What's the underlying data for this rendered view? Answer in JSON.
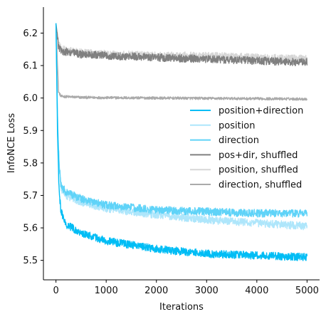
{
  "chart_data": {
    "type": "line",
    "title": "",
    "xlabel": "Iterations",
    "ylabel": "InfoNCE Loss",
    "xlim": [
      -250,
      5250
    ],
    "ylim": [
      5.44,
      6.28
    ],
    "x_ticks": [
      0,
      1000,
      2000,
      3000,
      4000,
      5000
    ],
    "x_tick_labels": [
      "0",
      "1000",
      "2000",
      "3000",
      "4000",
      "5000"
    ],
    "y_ticks": [
      5.5,
      5.6,
      5.7,
      5.8,
      5.9,
      6.0,
      6.1,
      6.2
    ],
    "y_tick_labels": [
      "5.5",
      "5.6",
      "5.7",
      "5.8",
      "5.9",
      "6.0",
      "6.1",
      "6.2"
    ],
    "grid": false,
    "legend_position": "center-right",
    "series": [
      {
        "name": "direction, shuffled",
        "color": "#aaaaaa",
        "x": [
          0,
          50,
          100,
          500,
          1000,
          2000,
          3000,
          4000,
          5000
        ],
        "y": [
          6.23,
          6.02,
          6.005,
          6.002,
          6.001,
          6.0,
          5.999,
          5.998,
          5.997
        ],
        "noise": 0.004
      },
      {
        "name": "position, shuffled",
        "color": "#d7d7d7",
        "x": [
          0,
          50,
          100,
          500,
          1000,
          2000,
          3000,
          4000,
          5000
        ],
        "y": [
          6.23,
          6.17,
          6.15,
          6.14,
          6.135,
          6.13,
          6.13,
          6.125,
          6.12
        ],
        "noise": 0.012
      },
      {
        "name": "pos+dir, shuffled",
        "color": "#808080",
        "x": [
          0,
          50,
          100,
          500,
          1000,
          2000,
          3000,
          4000,
          5000
        ],
        "y": [
          6.23,
          6.16,
          6.145,
          6.135,
          6.13,
          6.125,
          6.12,
          6.115,
          6.11
        ],
        "noise": 0.012
      },
      {
        "name": "position",
        "color": "#aee6fb",
        "x": [
          0,
          30,
          60,
          100,
          200,
          500,
          1000,
          2000,
          3000,
          4000,
          5000
        ],
        "y": [
          6.23,
          5.95,
          5.8,
          5.72,
          5.7,
          5.68,
          5.66,
          5.64,
          5.625,
          5.615,
          5.605
        ],
        "noise": 0.012
      },
      {
        "name": "direction",
        "color": "#5fd3f8",
        "x": [
          0,
          30,
          60,
          100,
          200,
          500,
          1000,
          2000,
          3000,
          4000,
          5000
        ],
        "y": [
          6.23,
          5.95,
          5.8,
          5.73,
          5.71,
          5.69,
          5.67,
          5.655,
          5.65,
          5.645,
          5.645
        ],
        "noise": 0.012
      },
      {
        "name": "position+direction",
        "color": "#00bdf5",
        "x": [
          0,
          30,
          60,
          100,
          200,
          500,
          1000,
          2000,
          3000,
          4000,
          5000
        ],
        "y": [
          6.23,
          5.9,
          5.72,
          5.65,
          5.61,
          5.585,
          5.56,
          5.535,
          5.52,
          5.515,
          5.51
        ],
        "noise": 0.012
      }
    ],
    "legend_order": [
      "position+direction",
      "position",
      "direction",
      "pos+dir, shuffled",
      "position, shuffled",
      "direction, shuffled"
    ]
  }
}
